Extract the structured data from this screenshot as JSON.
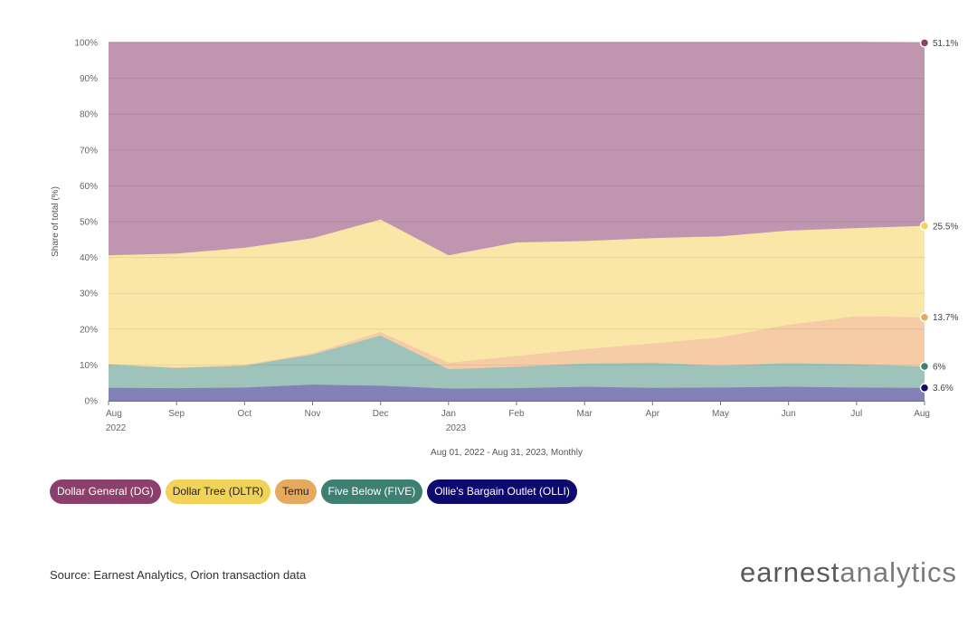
{
  "chart_data": {
    "type": "area",
    "stacked": true,
    "normalized": true,
    "categories": [
      "Aug",
      "Sep",
      "Oct",
      "Nov",
      "Dec",
      "Jan",
      "Feb",
      "Mar",
      "Apr",
      "May",
      "Jun",
      "Jul",
      "Aug"
    ],
    "year_labels": {
      "0": "2022",
      "5": "2023"
    },
    "xlabel": "Aug 01, 2022 - Aug 31, 2023, Monthly",
    "ylabel": "Share of total (%)",
    "ylim": [
      0,
      100
    ],
    "yticks": [
      "0%",
      "10%",
      "20%",
      "30%",
      "40%",
      "50%",
      "60%",
      "70%",
      "80%",
      "90%",
      "100%"
    ],
    "series": [
      {
        "name": "Ollie's Bargain Outlet (OLLI)",
        "color": "#0c0a6e",
        "fill": "#8480b8",
        "values": [
          3.6,
          3.5,
          3.7,
          4.5,
          4.2,
          3.4,
          3.5,
          3.9,
          3.6,
          3.7,
          3.9,
          3.7,
          3.6
        ]
      },
      {
        "name": "Five Below (FIVE)",
        "color": "#3d7f73",
        "fill": "#9ec3ba",
        "values": [
          6.7,
          5.8,
          6.1,
          8.4,
          14.0,
          5.4,
          6.0,
          6.5,
          7.0,
          6.1,
          6.6,
          6.5,
          6.0
        ]
      },
      {
        "name": "Temu",
        "color": "#e6a95d",
        "fill": "#f5cca5",
        "values": [
          0.0,
          0.0,
          0.2,
          0.4,
          1.0,
          1.8,
          3.0,
          4.0,
          5.4,
          7.9,
          10.7,
          13.4,
          13.7
        ]
      },
      {
        "name": "Dollar Tree (DLTR)",
        "color": "#f2d35a",
        "fill": "#fae6a6",
        "values": [
          30.3,
          31.8,
          32.7,
          32.1,
          31.4,
          30.0,
          31.7,
          30.2,
          29.4,
          28.2,
          26.3,
          24.6,
          25.5
        ]
      },
      {
        "name": "Dollar General (DG)",
        "color": "#8c3f6b",
        "fill": "#c095b0",
        "values": [
          59.4,
          58.9,
          57.3,
          54.6,
          49.4,
          59.4,
          55.8,
          55.4,
          54.6,
          54.1,
          52.5,
          51.8,
          51.1
        ]
      }
    ],
    "end_labels": [
      {
        "series": "Dollar General (DG)",
        "text": "51.1%"
      },
      {
        "series": "Dollar Tree (DLTR)",
        "text": "25.5%"
      },
      {
        "series": "Temu",
        "text": "13.7%"
      },
      {
        "series": "Five Below (FIVE)",
        "text": "6%"
      },
      {
        "series": "Ollie's Bargain Outlet (OLLI)",
        "text": "3.6%"
      }
    ]
  },
  "legend": [
    {
      "label": "Dollar General (DG)",
      "bg": "#8c3f6b",
      "fg": "#ffffff"
    },
    {
      "label": "Dollar Tree (DLTR)",
      "bg": "#f2d35a",
      "fg": "#222222"
    },
    {
      "label": "Temu",
      "bg": "#e6a95d",
      "fg": "#222222"
    },
    {
      "label": "Five Below (FIVE)",
      "bg": "#3d7f73",
      "fg": "#ffffff"
    },
    {
      "label": "Ollie's Bargain Outlet (OLLI)",
      "bg": "#0c0a6e",
      "fg": "#ffffff"
    }
  ],
  "footer": {
    "source": "Source: Earnest Analytics, Orion transaction data",
    "brand_part1": "earnest",
    "brand_part2": "analytics"
  }
}
